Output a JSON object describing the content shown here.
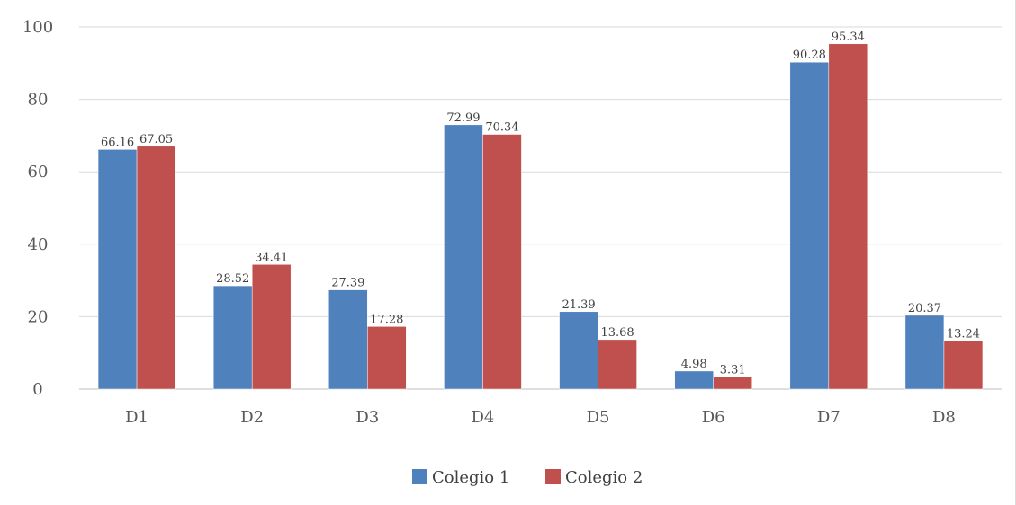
{
  "chart_data": {
    "type": "bar",
    "title": "",
    "xlabel": "",
    "ylabel": "",
    "categories": [
      "D1",
      "D2",
      "D3",
      "D4",
      "D5",
      "D6",
      "D7",
      "D8"
    ],
    "series": [
      {
        "name": "Colegio 1",
        "color": "#4f81bd",
        "values": [
          66.16,
          28.52,
          27.39,
          72.99,
          21.39,
          4.98,
          90.28,
          20.37
        ]
      },
      {
        "name": "Colegio 2",
        "color": "#c0504d",
        "values": [
          67.05,
          34.41,
          17.28,
          70.34,
          13.68,
          3.31,
          95.34,
          13.24
        ]
      }
    ],
    "ylim": [
      0,
      100
    ],
    "yticks": [
      0,
      20,
      40,
      60,
      80,
      100
    ],
    "grid": true,
    "data_labels": true,
    "legend_position": "bottom"
  }
}
